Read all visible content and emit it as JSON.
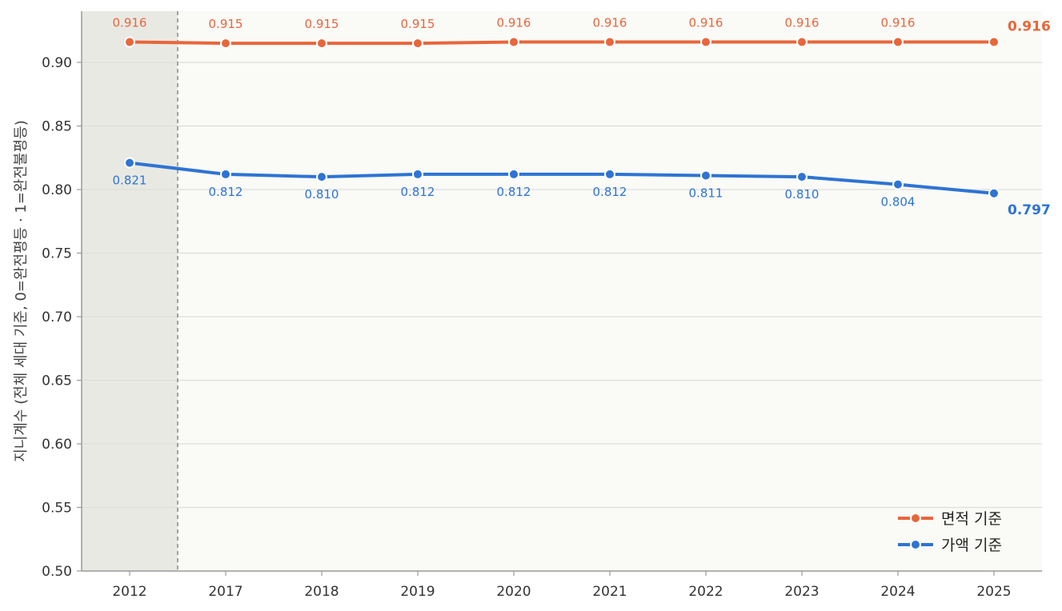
{
  "chart_data": {
    "type": "line",
    "categories": [
      "2012",
      "2017",
      "2018",
      "2019",
      "2020",
      "2021",
      "2022",
      "2023",
      "2024",
      "2025"
    ],
    "series": [
      {
        "name": "면적 기준",
        "color": "#e8663a",
        "values": [
          0.916,
          0.915,
          0.915,
          0.915,
          0.916,
          0.916,
          0.916,
          0.916,
          0.916,
          0.916
        ],
        "labels": [
          "0.916",
          "0.915",
          "0.915",
          "0.915",
          "0.916",
          "0.916",
          "0.916",
          "0.916",
          "0.916",
          "0.916"
        ]
      },
      {
        "name": "가액 기준",
        "color": "#2d74d3",
        "values": [
          0.821,
          0.812,
          0.81,
          0.812,
          0.812,
          0.812,
          0.811,
          0.81,
          0.804,
          0.797
        ],
        "labels": [
          "0.821",
          "0.812",
          "0.810",
          "0.812",
          "0.812",
          "0.812",
          "0.811",
          "0.810",
          "0.804",
          "0.797"
        ]
      }
    ],
    "ylabel": "지니계수 (전체 세대 기준, 0=완전평등 · 1=완전불평등)",
    "xlabel": "",
    "ylim": [
      0.5,
      0.93
    ],
    "yticks": [
      "0.50",
      "0.55",
      "0.60",
      "0.65",
      "0.70",
      "0.75",
      "0.80",
      "0.85",
      "0.90"
    ],
    "grid": "horizontal",
    "legend": "bottom-right",
    "shaded_category": "2012",
    "colors": {
      "background": "#fafaf7",
      "shade": "#e9e9e3",
      "grid": "#dddddd",
      "axis": "#888888"
    }
  }
}
